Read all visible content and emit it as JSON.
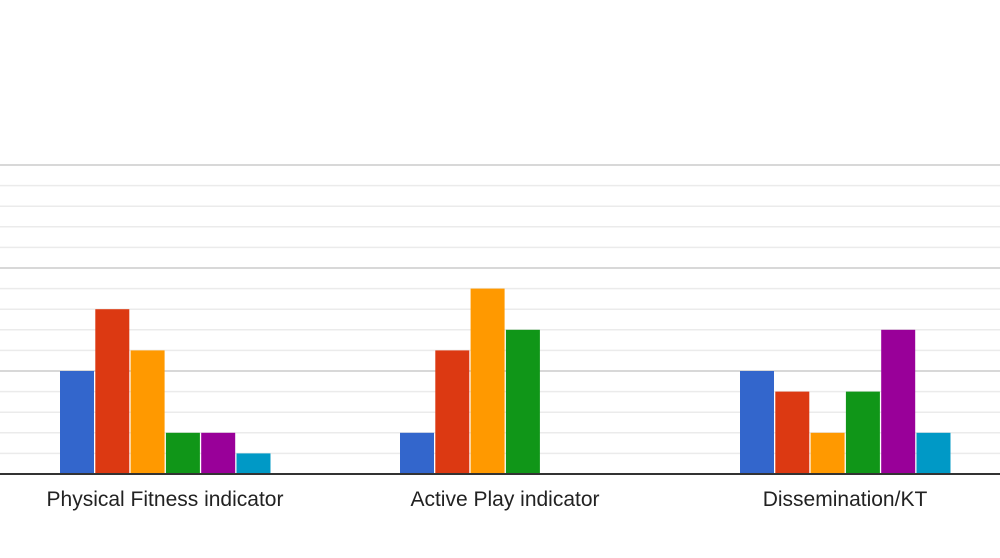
{
  "chart_data": {
    "type": "bar",
    "title": "",
    "xlabel": "",
    "ylabel": "",
    "categories": [
      "Physical Fitness indicator",
      "Active Play indicator",
      "Dissemination/KT"
    ],
    "series": [
      {
        "color": "#3366cc",
        "values": [
          5,
          2,
          5
        ]
      },
      {
        "color": "#dc3912",
        "values": [
          8,
          6,
          4
        ]
      },
      {
        "color": "#ff9900",
        "values": [
          6,
          9,
          2
        ]
      },
      {
        "color": "#109618",
        "values": [
          2,
          7,
          4
        ]
      },
      {
        "color": "#990099",
        "values": [
          2,
          0,
          7
        ]
      },
      {
        "color": "#0099c6",
        "values": [
          1,
          0,
          2
        ]
      }
    ],
    "ylim": [
      0,
      15
    ],
    "grid": true,
    "legend": "none"
  }
}
